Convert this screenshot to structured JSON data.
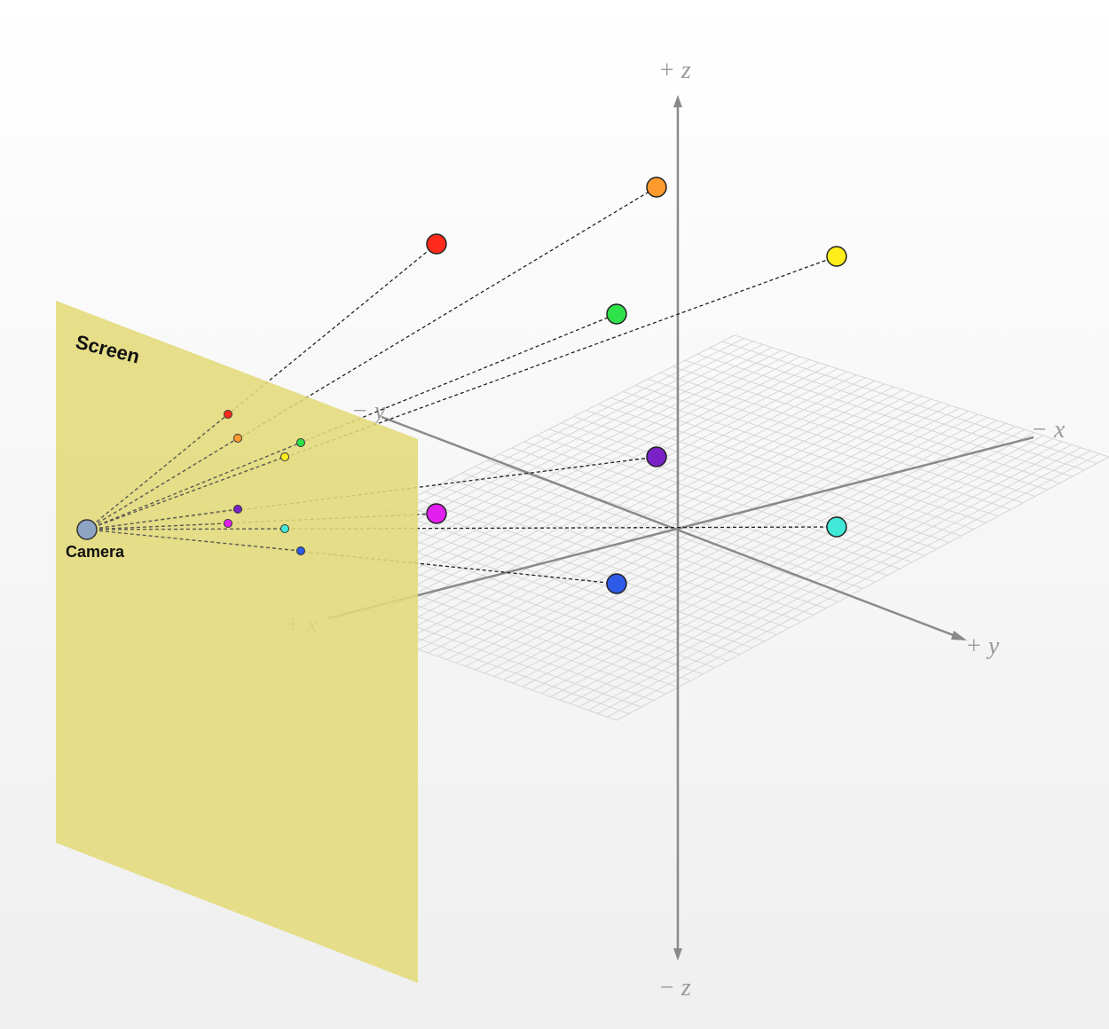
{
  "labels": {
    "screen": "Screen",
    "camera": "Camera",
    "plus_z": "+ z",
    "minus_z": "− z",
    "plus_x": "+ x",
    "minus_x": "− x",
    "plus_y": "+ y",
    "minus_y": "− y"
  },
  "colors": {
    "screen_fill": "#e3d977",
    "camera": "#8ea4c3",
    "axis": "#8a8a8a",
    "grid": "#d8d8d8"
  },
  "points": [
    {
      "name": "red",
      "color": "#ff2a1a"
    },
    {
      "name": "orange",
      "color": "#ff9a2e"
    },
    {
      "name": "yellow",
      "color": "#ffee1a"
    },
    {
      "name": "green",
      "color": "#2ee24a"
    },
    {
      "name": "purple",
      "color": "#7a22c8"
    },
    {
      "name": "magenta",
      "color": "#e21ef0"
    },
    {
      "name": "cyan",
      "color": "#40e8d8"
    },
    {
      "name": "blue",
      "color": "#2e5ae8"
    }
  ]
}
